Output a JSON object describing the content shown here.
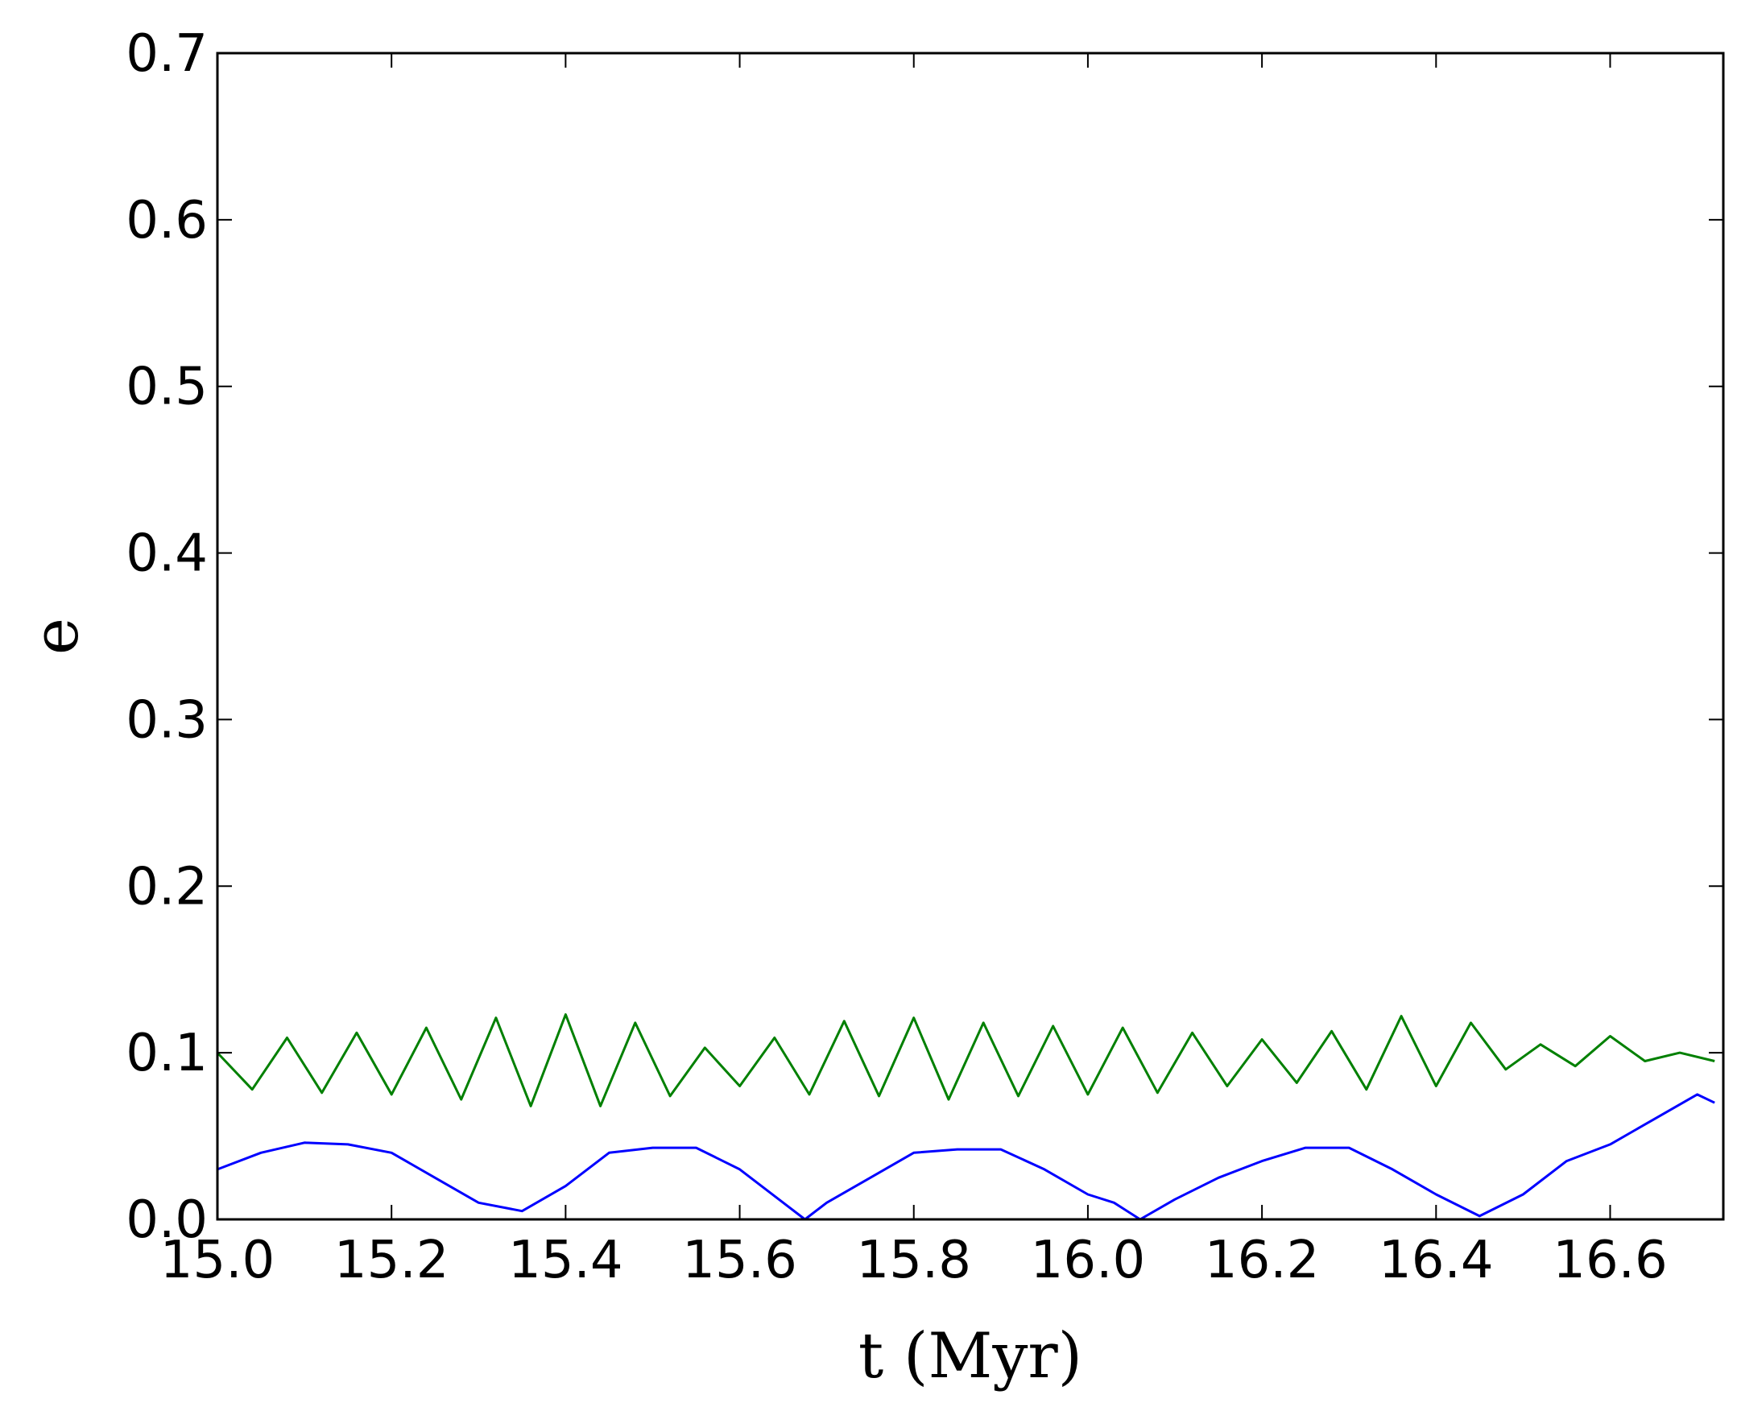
{
  "chart_data": {
    "type": "line",
    "title": "",
    "xlabel": "t (Myr)",
    "ylabel": "e",
    "xlim": [
      15.0,
      16.73
    ],
    "ylim": [
      0.0,
      0.7
    ],
    "xticks": [
      "15.0",
      "15.2",
      "15.4",
      "15.6",
      "15.8",
      "16.0",
      "16.2",
      "16.4",
      "16.6"
    ],
    "yticks": [
      "0.0",
      "0.1",
      "0.2",
      "0.3",
      "0.4",
      "0.5",
      "0.6",
      "0.7"
    ],
    "grid": false,
    "legend": "none",
    "series": [
      {
        "color": "#0000ff",
        "x": [
          15.0,
          15.05,
          15.1,
          15.15,
          15.2,
          15.25,
          15.3,
          15.35,
          15.4,
          15.45,
          15.5,
          15.55,
          15.6,
          15.65,
          15.675,
          15.7,
          15.75,
          15.8,
          15.85,
          15.9,
          15.95,
          16.0,
          16.03,
          16.06,
          16.1,
          16.15,
          16.2,
          16.25,
          16.3,
          16.35,
          16.4,
          16.45,
          16.5,
          16.55,
          16.6,
          16.65,
          16.7,
          16.72
        ],
        "y": [
          0.03,
          0.04,
          0.046,
          0.045,
          0.04,
          0.025,
          0.01,
          0.005,
          0.02,
          0.04,
          0.043,
          0.043,
          0.03,
          0.01,
          0.0,
          0.01,
          0.025,
          0.04,
          0.042,
          0.042,
          0.03,
          0.015,
          0.01,
          0.0,
          0.012,
          0.025,
          0.035,
          0.043,
          0.043,
          0.03,
          0.015,
          0.002,
          0.015,
          0.035,
          0.045,
          0.06,
          0.075,
          0.07
        ]
      },
      {
        "color": "#008000",
        "x": [
          15.0,
          15.04,
          15.08,
          15.12,
          15.16,
          15.2,
          15.24,
          15.28,
          15.32,
          15.36,
          15.4,
          15.44,
          15.48,
          15.52,
          15.56,
          15.6,
          15.64,
          15.68,
          15.72,
          15.76,
          15.8,
          15.84,
          15.88,
          15.92,
          15.96,
          16.0,
          16.04,
          16.08,
          16.12,
          16.16,
          16.2,
          16.24,
          16.28,
          16.32,
          16.36,
          16.4,
          16.44,
          16.48,
          16.52,
          16.56,
          16.6,
          16.64,
          16.68,
          16.72
        ],
        "y": [
          0.1,
          0.078,
          0.109,
          0.076,
          0.112,
          0.075,
          0.115,
          0.072,
          0.121,
          0.068,
          0.123,
          0.068,
          0.118,
          0.074,
          0.103,
          0.08,
          0.109,
          0.075,
          0.119,
          0.074,
          0.121,
          0.072,
          0.118,
          0.074,
          0.116,
          0.075,
          0.115,
          0.076,
          0.112,
          0.08,
          0.108,
          0.082,
          0.113,
          0.078,
          0.122,
          0.08,
          0.118,
          0.09,
          0.105,
          0.092,
          0.11,
          0.095,
          0.1,
          0.095
        ]
      }
    ]
  }
}
